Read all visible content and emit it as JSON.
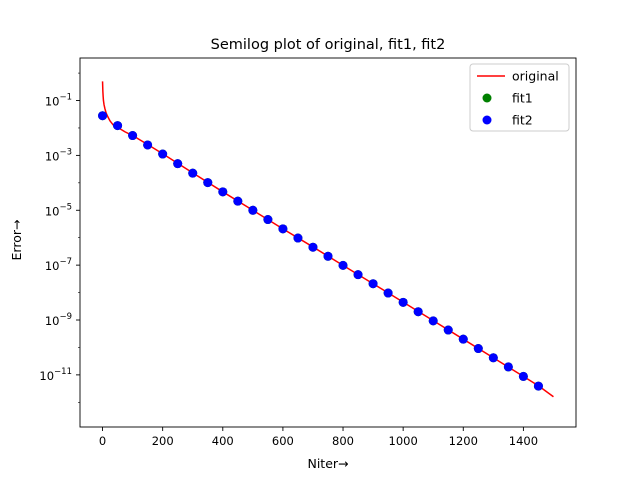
{
  "chart_data": {
    "type": "line",
    "title": "Semilog plot of original, fit1, fit2",
    "xlabel": "Niter→",
    "ylabel": "Error→",
    "xscale": "linear",
    "yscale": "log",
    "xlim": [
      -75,
      1575
    ],
    "ylim_log10": [
      -12.9,
      0.55
    ],
    "x_ticks": [
      0,
      200,
      400,
      600,
      800,
      1000,
      1200,
      1400
    ],
    "x_tick_labels": [
      "0",
      "200",
      "400",
      "600",
      "800",
      "1000",
      "1200",
      "1400"
    ],
    "y_ticks_log10": [
      -11,
      -9,
      -7,
      -5,
      -3,
      -1
    ],
    "y_tick_labels": [
      {
        "base": "10",
        "exp": "−11"
      },
      {
        "base": "10",
        "exp": "−9"
      },
      {
        "base": "10",
        "exp": "−7"
      },
      {
        "base": "10",
        "exp": "−5"
      },
      {
        "base": "10",
        "exp": "−3"
      },
      {
        "base": "10",
        "exp": "−1"
      }
    ],
    "legend": {
      "position": "top-right",
      "entries": [
        {
          "name": "original",
          "kind": "line",
          "color": "#ff0000"
        },
        {
          "name": "fit1",
          "kind": "marker",
          "color": "#008000"
        },
        {
          "name": "fit2",
          "kind": "marker",
          "color": "#0000ff"
        }
      ]
    },
    "series": [
      {
        "name": "original",
        "kind": "line",
        "color": "#ff0000",
        "points": [
          [
            0,
            0.5
          ],
          [
            1,
            0.22
          ],
          [
            2,
            0.14
          ],
          [
            3,
            0.1
          ],
          [
            5,
            0.07
          ],
          [
            8,
            0.05
          ],
          [
            12,
            0.035
          ],
          [
            18,
            0.025
          ],
          [
            25,
            0.018
          ],
          [
            35,
            0.013
          ],
          [
            50,
            0.0105
          ],
          [
            75,
            0.0072
          ],
          [
            100,
            0.0053
          ],
          [
            150,
            0.0025
          ],
          [
            200,
            0.00115
          ],
          [
            300,
            0.00023
          ],
          [
            400,
            4.7e-05
          ],
          [
            500,
            1e-05
          ],
          [
            600,
            2.1e-06
          ],
          [
            700,
            4.6e-07
          ],
          [
            800,
            9.8e-08
          ],
          [
            900,
            2.1e-08
          ],
          [
            1000,
            4.5e-09
          ],
          [
            1100,
            9.5e-10
          ],
          [
            1200,
            2e-10
          ],
          [
            1300,
            4.2e-11
          ],
          [
            1400,
            8.8e-12
          ],
          [
            1450,
            4e-12
          ],
          [
            1500,
            1.6e-12
          ]
        ]
      },
      {
        "name": "fit1",
        "kind": "marker",
        "color": "#008000",
        "x": [
          0,
          50,
          100,
          150,
          200,
          250,
          300,
          350,
          400,
          450,
          500,
          550,
          600,
          650,
          700,
          750,
          800,
          850,
          900,
          950,
          1000,
          1050,
          1100,
          1150,
          1200,
          1250,
          1300,
          1350,
          1400,
          1450
        ],
        "y": [
          0.028,
          0.0122,
          0.0053,
          0.0024,
          0.00112,
          0.0005,
          0.000225,
          0.000102,
          4.7e-05,
          2.15e-05,
          1e-05,
          4.6e-06,
          2.1e-06,
          9.7e-07,
          4.5e-07,
          2.1e-07,
          9.8e-08,
          4.5e-08,
          2.1e-08,
          9.6e-09,
          4.4e-09,
          2e-09,
          9.3e-10,
          4.3e-10,
          2e-10,
          9.1e-11,
          4.2e-11,
          1.95e-11,
          8.8e-12,
          3.9e-12
        ]
      },
      {
        "name": "fit2",
        "kind": "marker",
        "color": "#0000ff",
        "x": [
          0,
          50,
          100,
          150,
          200,
          250,
          300,
          350,
          400,
          450,
          500,
          550,
          600,
          650,
          700,
          750,
          800,
          850,
          900,
          950,
          1000,
          1050,
          1100,
          1150,
          1200,
          1250,
          1300,
          1350,
          1400,
          1450
        ],
        "y": [
          0.028,
          0.0122,
          0.0053,
          0.0024,
          0.00112,
          0.0005,
          0.000225,
          0.000102,
          4.7e-05,
          2.15e-05,
          1e-05,
          4.6e-06,
          2.1e-06,
          9.7e-07,
          4.5e-07,
          2.1e-07,
          9.8e-08,
          4.5e-08,
          2.1e-08,
          9.6e-09,
          4.4e-09,
          2e-09,
          9.3e-10,
          4.3e-10,
          2e-10,
          9.1e-11,
          4.2e-11,
          1.95e-11,
          8.8e-12,
          3.9e-12
        ]
      }
    ]
  }
}
